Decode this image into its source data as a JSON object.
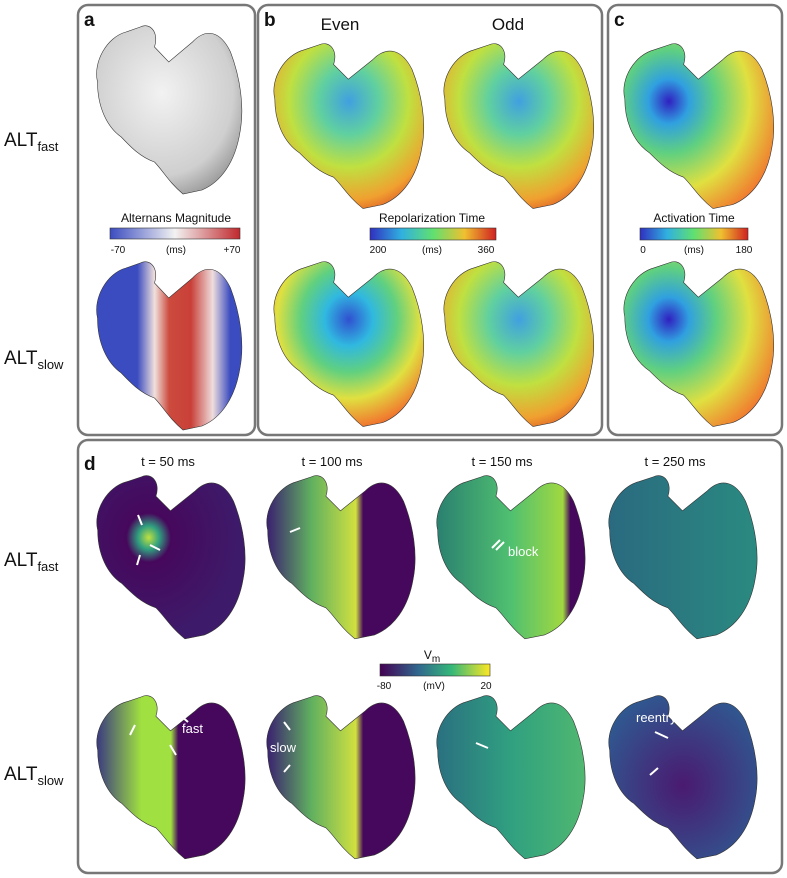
{
  "rows": [
    {
      "main": "ALT",
      "sub": "fast"
    },
    {
      "main": "ALT",
      "sub": "slow"
    },
    {
      "main": "ALT",
      "sub": "fast"
    },
    {
      "main": "ALT",
      "sub": "slow"
    }
  ],
  "panel_a": {
    "letter": "a",
    "colorbar": {
      "title": "Alternans Magnitude",
      "min": "-70",
      "unit": "(ms)",
      "max": "+70"
    }
  },
  "panel_b": {
    "letter": "b",
    "columns": [
      "Even",
      "Odd"
    ],
    "colorbar": {
      "title": "Repolarization Time",
      "min": "200",
      "unit": "(ms)",
      "max": "360"
    }
  },
  "panel_c": {
    "letter": "c",
    "colorbar": {
      "title": "Activation Time",
      "min": "0",
      "unit": "(ms)",
      "max": "180"
    }
  },
  "panel_d": {
    "letter": "d",
    "times": [
      "t = 50 ms",
      "t = 100 ms",
      "t = 150 ms",
      "t = 250 ms"
    ],
    "colorbar": {
      "title_main": "V",
      "title_sub": "m",
      "min": "-80",
      "unit": "(mV)",
      "max": "20"
    },
    "annotations": [
      "fast",
      "slow",
      "block",
      "reentry"
    ]
  }
}
